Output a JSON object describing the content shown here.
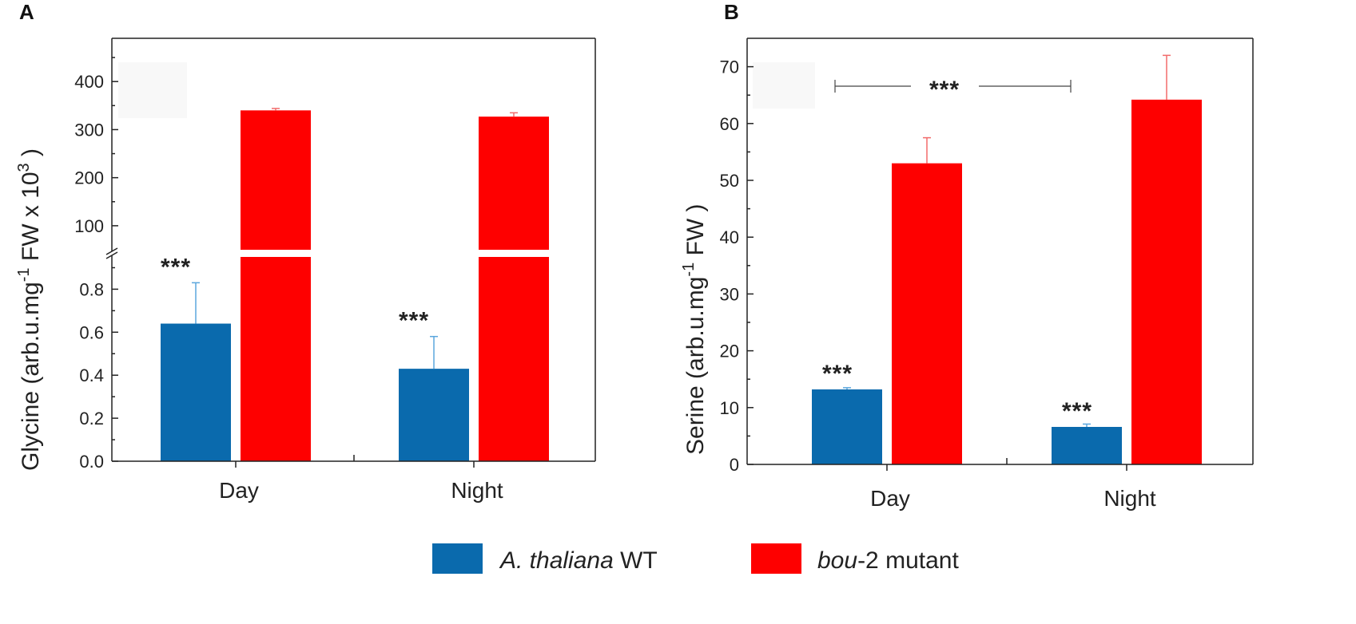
{
  "chart_data": [
    {
      "panel": "A",
      "type": "bar",
      "categories": [
        "Day",
        "Night"
      ],
      "series": [
        {
          "name": "A. thaliana WT",
          "values": [
            0.64,
            0.43
          ],
          "errors": [
            0.19,
            0.15
          ],
          "axis": "lower"
        },
        {
          "name": "bou-2 mutant",
          "values": [
            340,
            327
          ],
          "errors": [
            4,
            8
          ],
          "axis": "upper"
        }
      ],
      "ylabel": {
        "prefix": "Glycine",
        "unit": "arb.u.mg",
        "sup1": "-1",
        "mid": " FW x 10",
        "sup2": "3",
        "suffix": ")"
      },
      "ylim_lower": [
        0,
        0.95
      ],
      "ylim_upper": [
        50,
        490
      ],
      "yticks_lower": [
        "0.0",
        "0.2",
        "0.4",
        "0.6",
        "0.8"
      ],
      "yticks_upper": [
        "100",
        "200",
        "300",
        "400"
      ],
      "annotations": [
        "***",
        "***"
      ],
      "axis_break": true
    },
    {
      "panel": "B",
      "type": "bar",
      "categories": [
        "Day",
        "Night"
      ],
      "series": [
        {
          "name": "A. thaliana WT",
          "values": [
            13.2,
            6.6
          ],
          "errors": [
            0.3,
            0.5
          ]
        },
        {
          "name": "bou-2 mutant",
          "values": [
            53,
            64.2
          ],
          "errors": [
            4.5,
            7.8
          ]
        }
      ],
      "ylabel": {
        "prefix": "Serine",
        "unit": "arb.u.mg",
        "sup1": "-1",
        "mid": " FW",
        "suffix": ")"
      },
      "ylim": [
        0,
        75
      ],
      "yticks": [
        "0",
        "10",
        "20",
        "30",
        "40",
        "50",
        "60",
        "70"
      ],
      "annotations": [
        "***",
        "***"
      ],
      "bracket_label": "***"
    }
  ],
  "panels": {
    "a": "A",
    "b": "B"
  },
  "legend": {
    "wt_italic": "A. thaliana",
    "wt_rest": " WT",
    "mut_italic": "bou",
    "mut_rest": "-2 mutant"
  },
  "colors": {
    "wt": "#0a6aad",
    "mutant": "#fe0000",
    "wt_err": "#5ba7dd",
    "mut_err": "#f26b6b"
  }
}
